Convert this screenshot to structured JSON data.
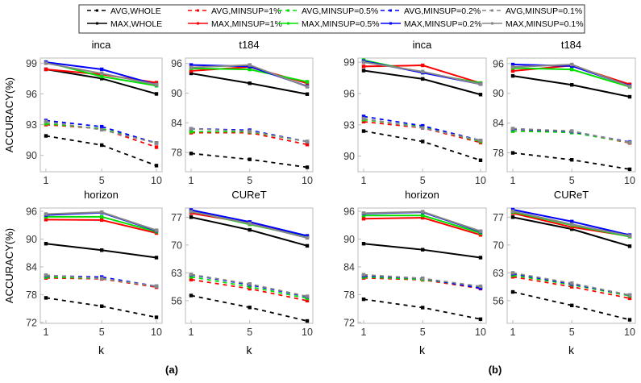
{
  "legend": {
    "entries": [
      {
        "label": "AVG,WHOLE",
        "color": "#000000",
        "dashed": true
      },
      {
        "label": "AVG,MINSUP=1%",
        "color": "#ff0000",
        "dashed": true
      },
      {
        "label": "AVG,MINSUP=0.5%",
        "color": "#00e000",
        "dashed": true
      },
      {
        "label": "AVG,MINSUP=0.2%",
        "color": "#0000ff",
        "dashed": true
      },
      {
        "label": "AVG,MINSUP=0.1%",
        "color": "#888888",
        "dashed": true
      },
      {
        "label": "MAX,WHOLE",
        "color": "#000000",
        "dashed": false
      },
      {
        "label": "MAX,MINSUP=1%",
        "color": "#ff0000",
        "dashed": false
      },
      {
        "label": "MAX,MINSUP=0.5%",
        "color": "#00e000",
        "dashed": false
      },
      {
        "label": "MAX,MINSUP=0.2%",
        "color": "#0000ff",
        "dashed": false
      },
      {
        "label": "MAX,MINSUP=0.1%",
        "color": "#888888",
        "dashed": false
      }
    ]
  },
  "group_labels": [
    "(a)",
    "(b)"
  ],
  "ylabel": "ACCURACY(%)",
  "xlabel": "k",
  "chart_data": [
    {
      "type": "line",
      "group": "(a)",
      "title": "inca",
      "x": [
        1,
        5,
        10
      ],
      "xticks": [
        "1",
        "5",
        "10"
      ],
      "yticks": [
        90,
        93,
        96,
        99
      ],
      "ylim": [
        88.4,
        99.5
      ],
      "series": [
        {
          "name": "AVG,WHOLE",
          "values": [
            91.9,
            91.0,
            89.0
          ]
        },
        {
          "name": "AVG,MINSUP=1%",
          "values": [
            93.0,
            92.6,
            90.8
          ]
        },
        {
          "name": "AVG,MINSUP=0.5%",
          "values": [
            93.1,
            92.6,
            91.2
          ]
        },
        {
          "name": "AVG,MINSUP=0.2%",
          "values": [
            93.4,
            92.8,
            91.2
          ]
        },
        {
          "name": "AVG,MINSUP=0.1%",
          "values": [
            93.3,
            92.5,
            91.2
          ]
        },
        {
          "name": "MAX,WHOLE",
          "values": [
            98.4,
            97.5,
            96.0
          ]
        },
        {
          "name": "MAX,MINSUP=1%",
          "values": [
            98.4,
            97.9,
            97.1
          ]
        },
        {
          "name": "MAX,MINSUP=0.5%",
          "values": [
            99.1,
            97.7,
            96.8
          ]
        },
        {
          "name": "MAX,MINSUP=0.2%",
          "values": [
            99.1,
            98.4,
            96.9
          ]
        },
        {
          "name": "MAX,MINSUP=0.1%",
          "values": [
            99.0,
            98.0,
            96.9
          ]
        }
      ]
    },
    {
      "type": "line",
      "group": "(a)",
      "title": "t184",
      "x": [
        1,
        5,
        10
      ],
      "xticks": [
        "1",
        "5",
        "10"
      ],
      "yticks": [
        78,
        84,
        90,
        96
      ],
      "ylim": [
        74.1,
        97.1
      ],
      "series": [
        {
          "name": "AVG,WHOLE",
          "values": [
            77.8,
            76.6,
            75.0
          ]
        },
        {
          "name": "AVG,MINSUP=1%",
          "values": [
            82.0,
            82.0,
            79.6
          ]
        },
        {
          "name": "AVG,MINSUP=0.5%",
          "values": [
            82.2,
            82.2,
            80.2
          ]
        },
        {
          "name": "AVG,MINSUP=0.2%",
          "values": [
            82.8,
            82.5,
            80.2
          ]
        },
        {
          "name": "AVG,MINSUP=0.1%",
          "values": [
            82.8,
            82.3,
            80.2
          ]
        },
        {
          "name": "MAX,WHOLE",
          "values": [
            94.0,
            92.0,
            89.8
          ]
        },
        {
          "name": "MAX,MINSUP=1%",
          "values": [
            94.5,
            95.3,
            92.0
          ]
        },
        {
          "name": "MAX,MINSUP=0.5%",
          "values": [
            95.0,
            94.8,
            92.3
          ]
        },
        {
          "name": "MAX,MINSUP=0.2%",
          "values": [
            95.7,
            95.4,
            91.4
          ]
        },
        {
          "name": "MAX,MINSUP=0.1%",
          "values": [
            95.2,
            95.7,
            91.3
          ]
        }
      ]
    },
    {
      "type": "line",
      "group": "(a)",
      "title": "horizon",
      "x": [
        1,
        5,
        10
      ],
      "xticks": [
        "1",
        "5",
        "10"
      ],
      "yticks": [
        72,
        78,
        84,
        90,
        96
      ],
      "ylim": [
        71.8,
        96.7
      ],
      "series": [
        {
          "name": "AVG,WHOLE",
          "values": [
            77.3,
            75.5,
            73.1
          ]
        },
        {
          "name": "AVG,MINSUP=1%",
          "values": [
            81.6,
            81.4,
            79.6
          ]
        },
        {
          "name": "AVG,MINSUP=0.5%",
          "values": [
            81.8,
            81.5,
            79.8
          ]
        },
        {
          "name": "AVG,MINSUP=0.2%",
          "values": [
            82.1,
            81.8,
            79.8
          ]
        },
        {
          "name": "AVG,MINSUP=0.1%",
          "values": [
            82.2,
            81.5,
            79.8
          ]
        },
        {
          "name": "MAX,WHOLE",
          "values": [
            89.0,
            87.6,
            86.0
          ]
        },
        {
          "name": "MAX,MINSUP=1%",
          "values": [
            94.2,
            94.1,
            91.3
          ]
        },
        {
          "name": "MAX,MINSUP=0.5%",
          "values": [
            94.8,
            94.8,
            91.6
          ]
        },
        {
          "name": "MAX,MINSUP=0.2%",
          "values": [
            95.2,
            95.7,
            91.8
          ]
        },
        {
          "name": "MAX,MINSUP=0.1%",
          "values": [
            95.4,
            95.8,
            91.9
          ]
        }
      ]
    },
    {
      "type": "line",
      "group": "(a)",
      "title": "CUReT",
      "x": [
        1,
        5,
        10
      ],
      "xticks": [
        "1",
        "5",
        "10"
      ],
      "yticks": [
        56,
        63,
        70,
        77
      ],
      "ylim": [
        50.3,
        79.3
      ],
      "series": [
        {
          "name": "AVG,WHOLE",
          "values": [
            57.3,
            54.3,
            50.9
          ]
        },
        {
          "name": "AVG,MINSUP=1%",
          "values": [
            61.3,
            59.0,
            56.0
          ]
        },
        {
          "name": "AVG,MINSUP=0.5%",
          "values": [
            62.0,
            59.5,
            56.6
          ]
        },
        {
          "name": "AVG,MINSUP=0.2%",
          "values": [
            62.5,
            60.0,
            57.0
          ]
        },
        {
          "name": "AVG,MINSUP=0.1%",
          "values": [
            62.6,
            60.2,
            57.1
          ]
        },
        {
          "name": "MAX,WHOLE",
          "values": [
            77.0,
            73.8,
            69.8
          ]
        },
        {
          "name": "MAX,MINSUP=1%",
          "values": [
            78.0,
            75.5,
            72.0
          ]
        },
        {
          "name": "MAX,MINSUP=0.5%",
          "values": [
            78.5,
            75.2,
            72.0
          ]
        },
        {
          "name": "MAX,MINSUP=0.2%",
          "values": [
            78.8,
            75.8,
            72.3
          ]
        },
        {
          "name": "MAX,MINSUP=0.1%",
          "values": [
            78.4,
            75.4,
            71.8
          ]
        }
      ]
    },
    {
      "type": "line",
      "group": "(b)",
      "title": "inca",
      "x": [
        1,
        5,
        10
      ],
      "xticks": [
        "1",
        "5",
        "10"
      ],
      "yticks": [
        90,
        93,
        96,
        99
      ],
      "ylim": [
        88.5,
        99.4
      ],
      "series": [
        {
          "name": "AVG,WHOLE",
          "values": [
            92.4,
            91.4,
            89.6
          ]
        },
        {
          "name": "AVG,MINSUP=1%",
          "values": [
            93.3,
            92.7,
            91.3
          ]
        },
        {
          "name": "AVG,MINSUP=0.5%",
          "values": [
            93.5,
            92.8,
            91.4
          ]
        },
        {
          "name": "AVG,MINSUP=0.2%",
          "values": [
            93.8,
            92.9,
            91.5
          ]
        },
        {
          "name": "AVG,MINSUP=0.1%",
          "values": [
            93.6,
            92.7,
            91.5
          ]
        },
        {
          "name": "MAX,WHOLE",
          "values": [
            98.2,
            97.4,
            95.9
          ]
        },
        {
          "name": "MAX,MINSUP=1%",
          "values": [
            98.6,
            98.7,
            97.0
          ]
        },
        {
          "name": "MAX,MINSUP=0.5%",
          "values": [
            99.2,
            98.0,
            97.0
          ]
        },
        {
          "name": "MAX,MINSUP=0.2%",
          "values": [
            99.1,
            98.0,
            96.9
          ]
        },
        {
          "name": "MAX,MINSUP=0.1%",
          "values": [
            99.0,
            98.1,
            96.9
          ]
        }
      ]
    },
    {
      "type": "line",
      "group": "(b)",
      "title": "t184",
      "x": [
        1,
        5,
        10
      ],
      "xticks": [
        "1",
        "5",
        "10"
      ],
      "yticks": [
        78,
        84,
        90,
        96
      ],
      "ylim": [
        74.2,
        97.1
      ],
      "series": [
        {
          "name": "AVG,WHOLE",
          "values": [
            78.0,
            76.6,
            74.7
          ]
        },
        {
          "name": "AVG,MINSUP=1%",
          "values": [
            82.4,
            82.2,
            80.0
          ]
        },
        {
          "name": "AVG,MINSUP=0.5%",
          "values": [
            82.4,
            82.1,
            80.1
          ]
        },
        {
          "name": "AVG,MINSUP=0.2%",
          "values": [
            82.8,
            82.3,
            80.2
          ]
        },
        {
          "name": "AVG,MINSUP=0.1%",
          "values": [
            82.9,
            82.4,
            80.1
          ]
        },
        {
          "name": "MAX,WHOLE",
          "values": [
            93.5,
            91.7,
            89.3
          ]
        },
        {
          "name": "MAX,MINSUP=1%",
          "values": [
            94.5,
            95.6,
            91.8
          ]
        },
        {
          "name": "MAX,MINSUP=0.5%",
          "values": [
            95.1,
            94.8,
            91.3
          ]
        },
        {
          "name": "MAX,MINSUP=0.2%",
          "values": [
            95.8,
            95.5,
            91.5
          ]
        },
        {
          "name": "MAX,MINSUP=0.1%",
          "values": [
            95.3,
            95.8,
            91.4
          ]
        }
      ]
    },
    {
      "type": "line",
      "group": "(b)",
      "title": "horizon",
      "x": [
        1,
        5,
        10
      ],
      "xticks": [
        "1",
        "5",
        "10"
      ],
      "yticks": [
        72,
        78,
        84,
        90,
        96
      ],
      "ylim": [
        71.8,
        96.7
      ],
      "series": [
        {
          "name": "AVG,WHOLE",
          "values": [
            77.0,
            75.2,
            72.7
          ]
        },
        {
          "name": "AVG,MINSUP=1%",
          "values": [
            81.6,
            81.2,
            79.3
          ]
        },
        {
          "name": "AVG,MINSUP=0.5%",
          "values": [
            81.8,
            81.3,
            79.6
          ]
        },
        {
          "name": "AVG,MINSUP=0.2%",
          "values": [
            82.1,
            81.5,
            79.4
          ]
        },
        {
          "name": "AVG,MINSUP=0.1%",
          "values": [
            82.3,
            81.5,
            79.8
          ]
        },
        {
          "name": "MAX,WHOLE",
          "values": [
            89.0,
            87.7,
            86.0
          ]
        },
        {
          "name": "MAX,MINSUP=1%",
          "values": [
            94.4,
            94.6,
            90.9
          ]
        },
        {
          "name": "MAX,MINSUP=0.5%",
          "values": [
            95.1,
            95.1,
            91.3
          ]
        },
        {
          "name": "MAX,MINSUP=0.2%",
          "values": [
            95.5,
            95.8,
            91.6
          ]
        },
        {
          "name": "MAX,MINSUP=0.1%",
          "values": [
            95.6,
            95.9,
            91.7
          ]
        }
      ]
    },
    {
      "type": "line",
      "group": "(b)",
      "title": "CUReT",
      "x": [
        1,
        5,
        10
      ],
      "xticks": [
        "1",
        "5",
        "10"
      ],
      "yticks": [
        56,
        63,
        70,
        77
      ],
      "ylim": [
        50.3,
        79.3
      ],
      "series": [
        {
          "name": "AVG,WHOLE",
          "values": [
            58.2,
            54.8,
            51.2
          ]
        },
        {
          "name": "AVG,MINSUP=1%",
          "values": [
            62.0,
            59.5,
            56.6
          ]
        },
        {
          "name": "AVG,MINSUP=0.5%",
          "values": [
            62.4,
            60.0,
            57.2
          ]
        },
        {
          "name": "AVG,MINSUP=0.2%",
          "values": [
            62.8,
            60.2,
            57.4
          ]
        },
        {
          "name": "AVG,MINSUP=0.1%",
          "values": [
            63.0,
            60.4,
            57.4
          ]
        },
        {
          "name": "MAX,WHOLE",
          "values": [
            77.0,
            74.0,
            69.7
          ]
        },
        {
          "name": "MAX,MINSUP=1%",
          "values": [
            78.0,
            74.5,
            72.2
          ]
        },
        {
          "name": "MAX,MINSUP=0.5%",
          "values": [
            78.3,
            75.0,
            72.1
          ]
        },
        {
          "name": "MAX,MINSUP=0.2%",
          "values": [
            78.9,
            75.9,
            72.5
          ]
        },
        {
          "name": "MAX,MINSUP=0.1%",
          "values": [
            78.5,
            75.2,
            72.3
          ]
        }
      ]
    }
  ]
}
